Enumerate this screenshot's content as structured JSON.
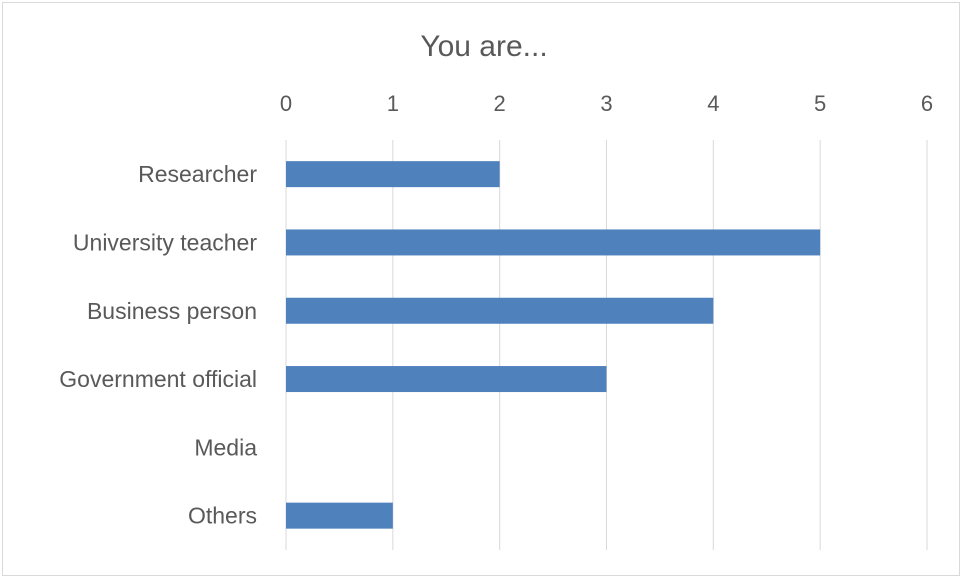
{
  "chart_data": {
    "type": "bar",
    "orientation": "horizontal",
    "title": "You are...",
    "categories": [
      "Researcher",
      "University teacher",
      "Business person",
      "Government official",
      "Media",
      "Others"
    ],
    "series": [
      {
        "values": [
          2,
          5,
          4,
          3,
          0,
          1
        ]
      }
    ],
    "xlim": [
      0,
      6
    ],
    "x_ticks": [
      "0",
      "1",
      "2",
      "3",
      "4",
      "5",
      "6"
    ],
    "x_axis_position": "top",
    "grid": true,
    "legend": "none",
    "colors": {
      "bar": "#4f81bd",
      "grid": "#d9d9d9",
      "text": "#595959"
    }
  }
}
